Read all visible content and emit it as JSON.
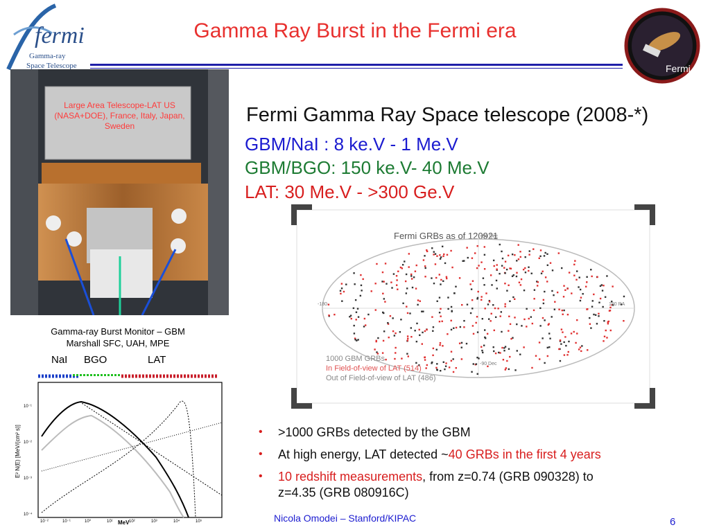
{
  "title": "Gamma Ray Burst in the Fermi era",
  "logo": {
    "name": "fermi",
    "line1": "Gamma-ray",
    "line2": "Space Telescope"
  },
  "patch": {
    "text": "Fermi"
  },
  "photo": {
    "lat_label": "Large Area Telescope-LAT US (NASA+DOE), France, Italy, Japan, Sweden",
    "gbm_line1": "Gamma-ray Burst Monitor – GBM",
    "gbm_line2": "Marshall SFC, UAH, MPE",
    "detectors": {
      "nai": "NaI",
      "bgo": "BGO",
      "lat": "LAT"
    }
  },
  "spectrum": {
    "ylabel": "E² N(E) [MeV/(cm² s)]",
    "xlabel": "MeV",
    "yticks": [
      "10⁻¹",
      "10⁻²",
      "10⁻³",
      "10⁻⁴"
    ],
    "xticks": [
      "10⁻²",
      "10⁻¹",
      "10⁰",
      "10¹",
      "10²",
      "10³",
      "10⁴",
      "10⁵"
    ]
  },
  "heading": "Fermi Gamma Ray Space telescope (2008-*)",
  "ranges": {
    "nai": "GBM/NaI : 8 ke.V - 1 Me.V",
    "bgo": "GBM/BGO: 150 ke.V- 40 Me.V",
    "lat": "LAT: 30 Me.V - >300 Ge.V"
  },
  "skymap": {
    "title": "Fermi GRBs as of 120921",
    "left_label": "-180",
    "right_label": "180 RA",
    "top_dec": "+90 Dec",
    "bottom_dec": "-90 Dec",
    "legend": [
      "1000 GBM GRBs",
      "In Field-of-view of LAT (514)",
      "Out of Field-of-view of LAT (486)"
    ]
  },
  "bullets": {
    "b1": ">1000 GRBs detected by the GBM",
    "b2_pre": "At high energy, LAT detected ~",
    "b2_red": "40 GRBs in the first 4 years",
    "b3_red": "10 redshift measurements",
    "b3_rest": ", from z=0.74 (GRB 090328) to",
    "b3_line2": "z=4.35 (GRB 080916C)"
  },
  "footer": {
    "author": "Nicola Omodei – Stanford/KIPAC",
    "page": "6"
  },
  "colors": {
    "title": "#e8302e",
    "blue": "#1b1bd0",
    "green": "#1d7b33",
    "red": "#d81e1e"
  }
}
